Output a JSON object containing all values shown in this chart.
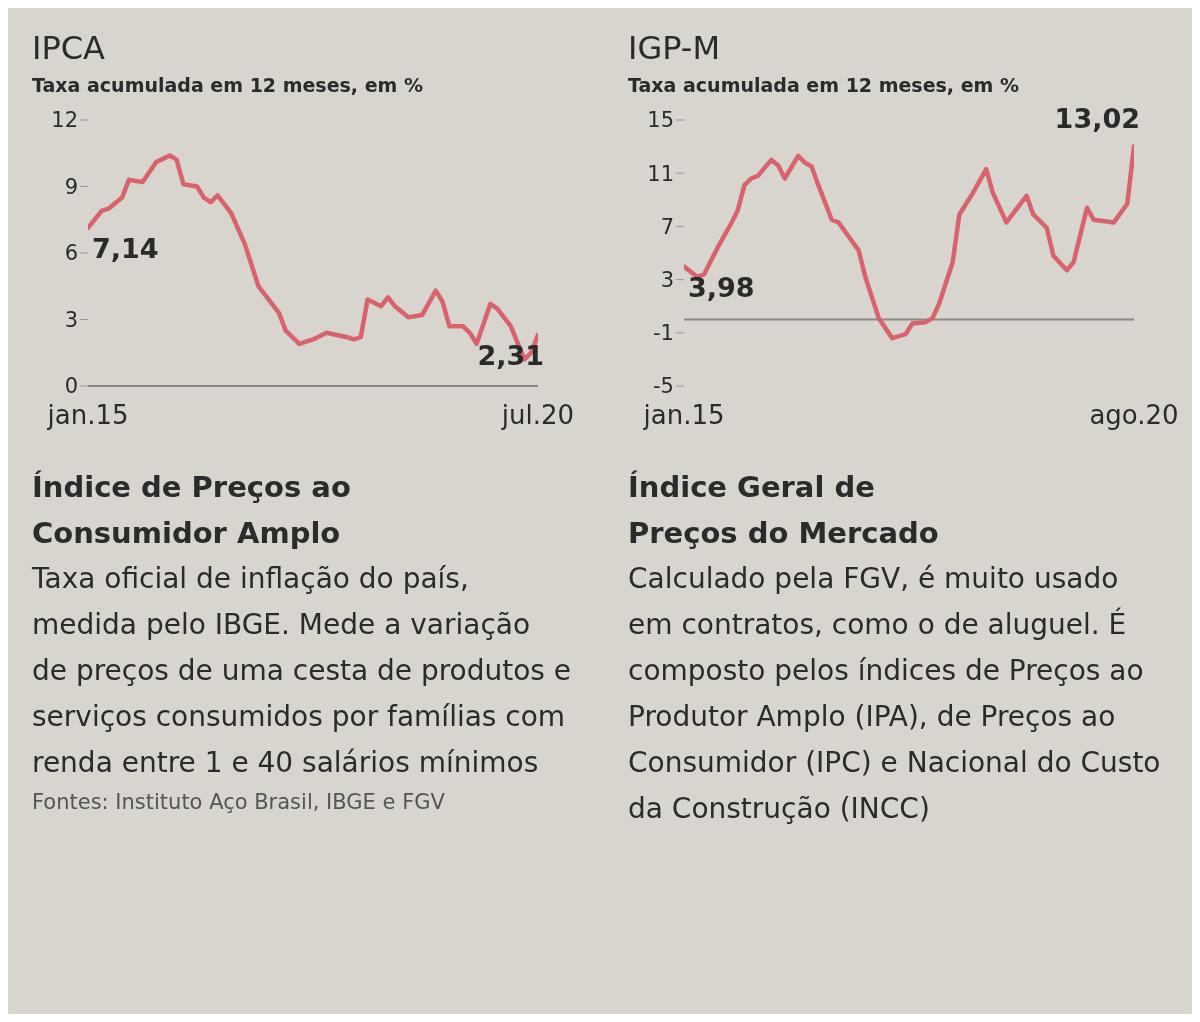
{
  "chart_data": [
    {
      "type": "line",
      "title": "IPCA",
      "subtitle": "Taxa acumulada em 12 meses, em %",
      "x": [
        "2015-01",
        "2015-03",
        "2015-04",
        "2015-06",
        "2015-07",
        "2015-09",
        "2015-11",
        "2016-01",
        "2016-02",
        "2016-03",
        "2016-05",
        "2016-06",
        "2016-07",
        "2016-08",
        "2016-10",
        "2016-12",
        "2017-02",
        "2017-03",
        "2017-05",
        "2017-06",
        "2017-08",
        "2017-10",
        "2017-12",
        "2018-03",
        "2018-04",
        "2018-05",
        "2018-06",
        "2018-08",
        "2018-09",
        "2018-10",
        "2018-12",
        "2019-02",
        "2019-04",
        "2019-05",
        "2019-06",
        "2019-08",
        "2019-09",
        "2019-10",
        "2019-12",
        "2020-01",
        "2020-03",
        "2020-05",
        "2020-06",
        "2020-07"
      ],
      "series": [
        {
          "color": "#d9636c",
          "values": [
            7.14,
            7.9,
            8.0,
            8.5,
            9.3,
            9.2,
            10.1,
            10.4,
            10.2,
            9.1,
            9.0,
            8.5,
            8.3,
            8.6,
            7.8,
            6.4,
            4.5,
            4.1,
            3.3,
            2.5,
            1.9,
            2.1,
            2.4,
            2.2,
            2.1,
            2.2,
            3.9,
            3.6,
            4.0,
            3.6,
            3.1,
            3.2,
            4.3,
            3.8,
            2.7,
            2.7,
            2.4,
            1.9,
            3.7,
            3.5,
            2.7,
            1.2,
            1.5,
            2.31
          ],
          "value_labels": [
            "7,14",
            null,
            null,
            null,
            null,
            null,
            null,
            null,
            null,
            null,
            null,
            null,
            null,
            null,
            null,
            null,
            null,
            null,
            null,
            null,
            null,
            null,
            null,
            null,
            null,
            null,
            null,
            null,
            null,
            null,
            null,
            null,
            null,
            null,
            null,
            null,
            null,
            null,
            null,
            null,
            null,
            null,
            null,
            "2,31"
          ]
        }
      ],
      "xlim": [
        "2015-01",
        "2020-07"
      ],
      "xticks": [
        {
          "value": "2015-01",
          "label": "jan.15"
        },
        {
          "value": "2020-07",
          "label": "jul.20"
        }
      ],
      "ylim": [
        0,
        12
      ],
      "yticks": [
        0,
        3,
        6,
        9,
        12
      ],
      "grid": false,
      "legend": false,
      "marker": "none",
      "line_style": "solid",
      "annotations": [
        "Índice de Preços ao Consumidor Amplo",
        "Taxa oficial de inflação do país, medida pelo IBGE. Mede a variação de preços de uma cesta de produtos e serviços consumidos por famílias com renda entre 1 e 40 salários mínimos",
        "Fontes: Instituto Aço Brasil, IBGE e FGV"
      ]
    },
    {
      "type": "line",
      "title": "IGP-M",
      "subtitle": "Taxa acumulada em 12 meses, em %",
      "x": [
        "2015-01",
        "2015-03",
        "2015-04",
        "2015-06",
        "2015-08",
        "2015-09",
        "2015-10",
        "2015-11",
        "2015-12",
        "2016-02",
        "2016-03",
        "2016-04",
        "2016-06",
        "2016-07",
        "2016-08",
        "2016-09",
        "2016-11",
        "2016-12",
        "2017-02",
        "2017-03",
        "2017-04",
        "2017-06",
        "2017-08",
        "2017-10",
        "2017-11",
        "2018-01",
        "2018-02",
        "2018-03",
        "2018-05",
        "2018-06",
        "2018-08",
        "2018-10",
        "2018-11",
        "2019-01",
        "2019-04",
        "2019-05",
        "2019-07",
        "2019-08",
        "2019-10",
        "2019-11",
        "2020-01",
        "2020-02",
        "2020-05",
        "2020-07",
        "2020-08"
      ],
      "series": [
        {
          "color": "#d9636c",
          "values": [
            3.98,
            3.2,
            3.4,
            5.4,
            7.2,
            8.2,
            10.1,
            10.6,
            10.8,
            12.0,
            11.6,
            10.6,
            12.3,
            11.8,
            11.5,
            10.1,
            7.5,
            7.3,
            5.9,
            5.2,
            3.2,
            0.1,
            -1.4,
            -1.1,
            -0.3,
            -0.2,
            0.1,
            1.2,
            4.3,
            7.9,
            9.5,
            11.3,
            9.5,
            7.3,
            9.3,
            7.9,
            6.9,
            4.8,
            3.7,
            4.3,
            8.4,
            7.5,
            7.3,
            8.7,
            13.02
          ],
          "value_labels": [
            "3,98",
            null,
            null,
            null,
            null,
            null,
            null,
            null,
            null,
            null,
            null,
            null,
            null,
            null,
            null,
            null,
            null,
            null,
            null,
            null,
            null,
            null,
            null,
            null,
            null,
            null,
            null,
            null,
            null,
            null,
            null,
            null,
            null,
            null,
            null,
            null,
            null,
            null,
            null,
            null,
            null,
            null,
            null,
            null,
            "13,02"
          ]
        }
      ],
      "xlim": [
        "2015-01",
        "2020-08"
      ],
      "xticks": [
        {
          "value": "2015-01",
          "label": "jan.15"
        },
        {
          "value": "2020-08",
          "label": "ago.20"
        }
      ],
      "ylim": [
        -5,
        15
      ],
      "yticks": [
        -5,
        -1,
        3,
        7,
        11,
        15
      ],
      "ref_lines": [
        {
          "axis": "y",
          "value": 0,
          "color": "#8a8a88"
        }
      ],
      "grid": false,
      "legend": false,
      "marker": "none",
      "line_style": "solid",
      "annotations": [
        "Índice Geral de Preços do Mercado",
        "Calculado pela FGV, é muito usado em contratos, como o de aluguel. É composto pelos índices de Preços ao Produtor Amplo (IPA), de Preços ao Consumidor (IPC) e Nacional do Custo da Construção (INCC)"
      ]
    }
  ]
}
